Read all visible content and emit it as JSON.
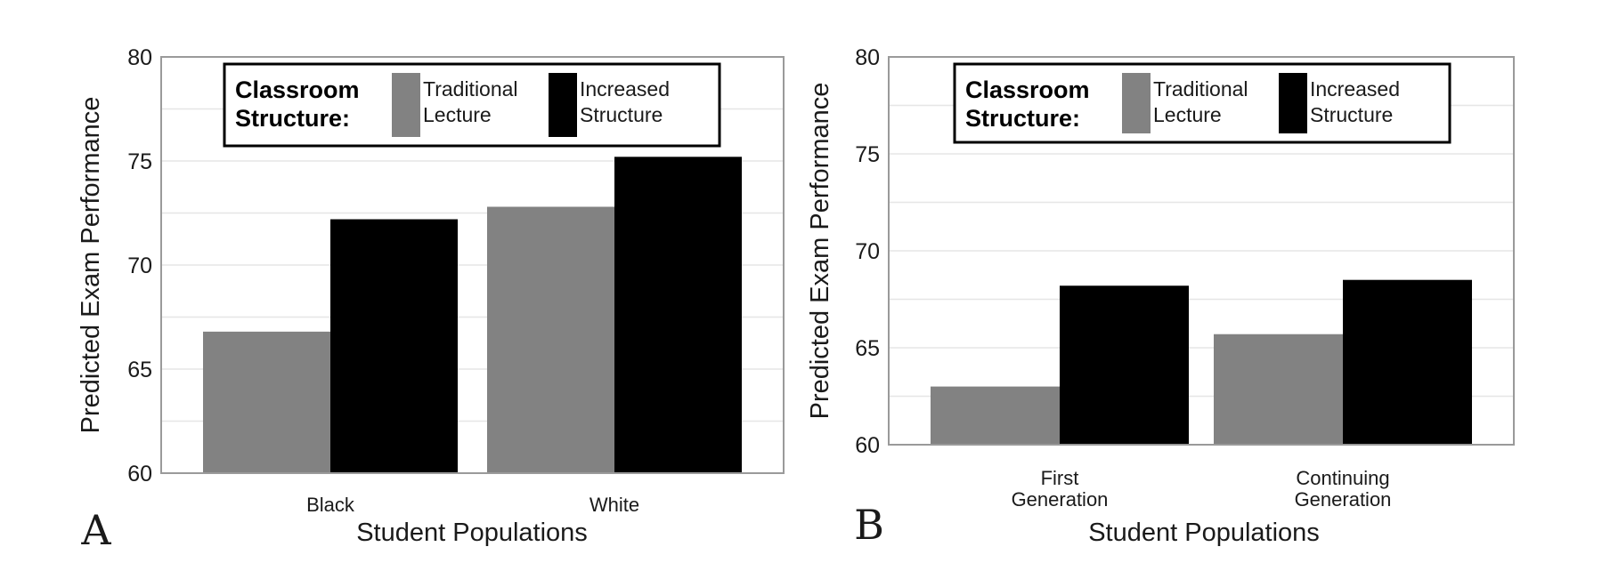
{
  "chart_data": [
    {
      "type": "bar",
      "panel_letter": "A",
      "xlabel": "Student Populations",
      "ylabel": "Predicted Exam Performance",
      "ylim": [
        60,
        80
      ],
      "yticks": [
        60,
        65,
        70,
        75,
        80
      ],
      "categories": [
        [
          "Black"
        ],
        [
          "White"
        ]
      ],
      "series": [
        {
          "name": [
            "Traditional",
            "Lecture"
          ],
          "values": [
            66.8,
            72.8
          ]
        },
        {
          "name": [
            "Increased",
            "Structure"
          ],
          "values": [
            72.2,
            75.2
          ]
        }
      ],
      "legend": {
        "title": [
          "Classroom",
          "Structure:"
        ],
        "placement": "top-center"
      },
      "grid": "horizontal"
    },
    {
      "type": "bar",
      "panel_letter": "B",
      "xlabel": "Student Populations",
      "ylabel": "Predicted Exam Performance",
      "ylim": [
        60,
        80
      ],
      "yticks": [
        60,
        65,
        70,
        75,
        80
      ],
      "categories": [
        [
          "First",
          "Generation"
        ],
        [
          "Continuing",
          "Generation"
        ]
      ],
      "series": [
        {
          "name": [
            "Traditional",
            "Lecture"
          ],
          "values": [
            63.0,
            65.7
          ]
        },
        {
          "name": [
            "Increased",
            "Structure"
          ],
          "values": [
            68.2,
            68.5
          ]
        }
      ],
      "legend": {
        "title": [
          "Classroom",
          "Structure:"
        ],
        "placement": "top-center"
      },
      "grid": "horizontal"
    }
  ],
  "colors": {
    "traditional": "#828282",
    "increased": "#000000",
    "grid": "#e6e6e6",
    "frame": "#9a9a9a",
    "text": "#1a1a1a"
  }
}
